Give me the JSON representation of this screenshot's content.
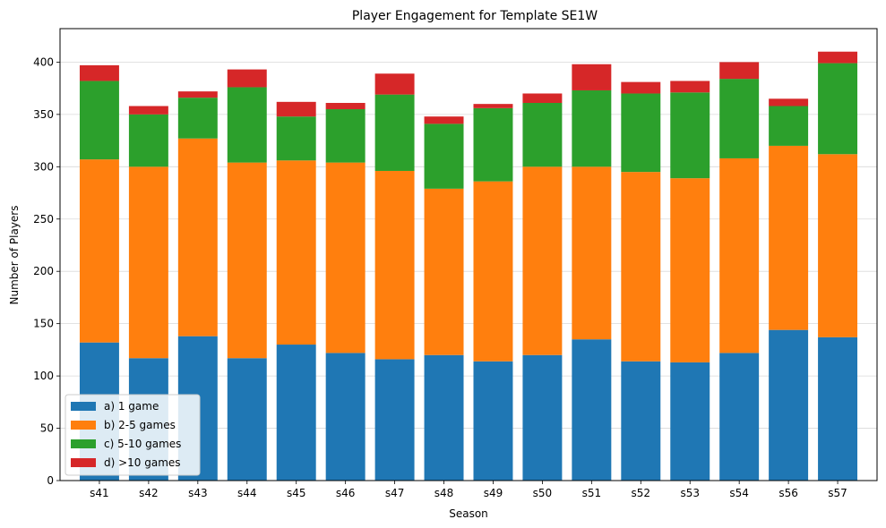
{
  "chart_data": {
    "type": "bar",
    "stacked": true,
    "title": "Player Engagement for Template SE1W",
    "xlabel": "Season",
    "ylabel": "Number of Players",
    "ylim": [
      0,
      432
    ],
    "yticks": [
      0,
      50,
      100,
      150,
      200,
      250,
      300,
      350,
      400
    ],
    "grid": "horizontal",
    "legend_position": "lower-left",
    "categories": [
      "s41",
      "s42",
      "s43",
      "s44",
      "s45",
      "s46",
      "s47",
      "s48",
      "s49",
      "s50",
      "s51",
      "s52",
      "s53",
      "s54",
      "s56",
      "s57"
    ],
    "series": [
      {
        "name": "a) 1 game",
        "color": "#1f77b4",
        "values": [
          132,
          117,
          138,
          117,
          130,
          122,
          116,
          120,
          114,
          120,
          135,
          114,
          113,
          122,
          144,
          137
        ]
      },
      {
        "name": "b) 2-5 games",
        "color": "#ff7f0e",
        "values": [
          175,
          183,
          189,
          187,
          176,
          182,
          180,
          159,
          172,
          180,
          165,
          181,
          176,
          186,
          176,
          175
        ]
      },
      {
        "name": "c) 5-10 games",
        "color": "#2ca02c",
        "values": [
          75,
          50,
          39,
          72,
          42,
          51,
          73,
          62,
          70,
          61,
          73,
          75,
          82,
          76,
          38,
          87
        ]
      },
      {
        "name": "d) >10 games",
        "color": "#d62728",
        "values": [
          15,
          8,
          6,
          17,
          14,
          6,
          20,
          7,
          4,
          9,
          25,
          11,
          11,
          16,
          7,
          11
        ]
      }
    ]
  }
}
